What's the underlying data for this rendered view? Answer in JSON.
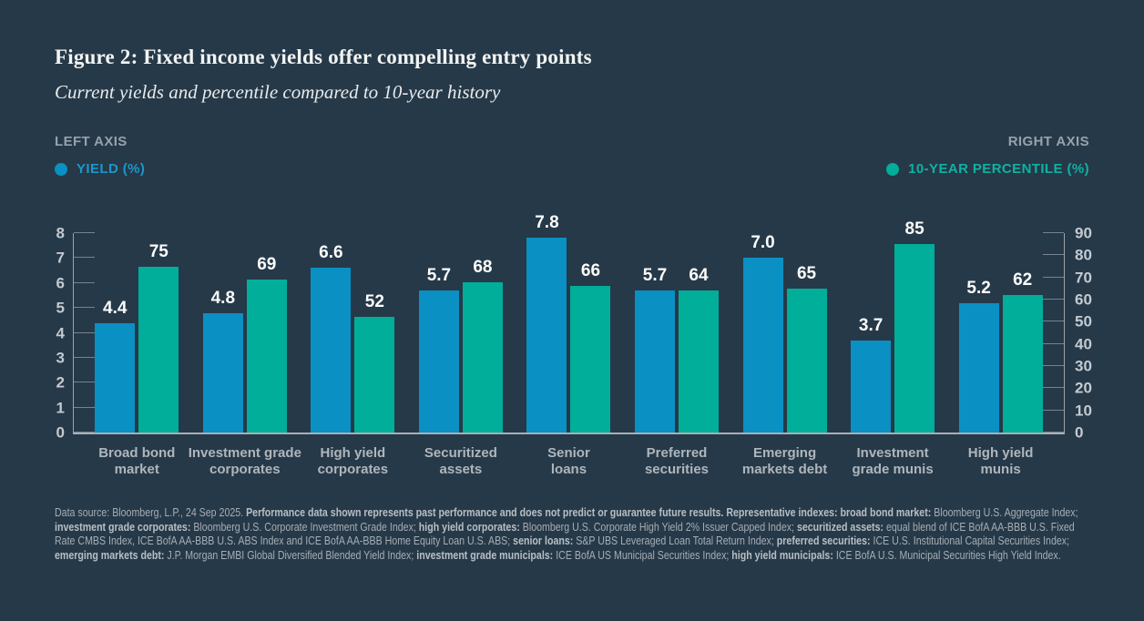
{
  "header": {
    "title": "Figure 2: Fixed income yields offer compelling entry points",
    "subtitle": "Current yields and percentile compared to 10-year history"
  },
  "legend": {
    "left_axis_label": "LEFT AXIS",
    "right_axis_label": "RIGHT AXIS",
    "yield_label": "YIELD (%)",
    "percentile_label": "10-YEAR PERCENTILE (%)",
    "yield_color": "#0B90C4",
    "percentile_color": "#00AE9A"
  },
  "colors": {
    "background": "#263948",
    "yield_bar": "#0B90C4",
    "percentile_bar": "#00AE9A",
    "axis_line": "#9AA3AB",
    "tick_label": "#C3CAD0"
  },
  "chart_data": {
    "type": "bar",
    "title": "Figure 2: Fixed income yields offer compelling entry points",
    "subtitle": "Current yields and percentile compared to 10-year history",
    "grid": false,
    "legend_position": "top",
    "categories": [
      "Broad bond market",
      "Investment grade corporates",
      "High yield corporates",
      "Securitized assets",
      "Senior loans",
      "Preferred securities",
      "Emerging markets debt",
      "Investment grade munis",
      "High yield munis"
    ],
    "category_display": [
      "Broad bond\nmarket",
      "Investment grade\ncorporates",
      "High yield\ncorporates",
      "Securitized\nassets",
      "Senior\nloans",
      "Preferred\nsecurities",
      "Emerging\nmarkets debt",
      "Investment\ngrade munis",
      "High yield\nmunis"
    ],
    "series": [
      {
        "name": "Yield (%)",
        "axis": "left",
        "color": "#0B90C4",
        "values": [
          4.4,
          4.8,
          6.6,
          5.7,
          7.8,
          5.7,
          7.0,
          3.7,
          5.2
        ],
        "labels": [
          "4.4",
          "4.8",
          "6.6",
          "5.7",
          "7.8",
          "5.7",
          "7.0",
          "3.7",
          "5.2"
        ]
      },
      {
        "name": "10-year percentile (%)",
        "axis": "right",
        "color": "#00AE9A",
        "values": [
          75,
          69,
          52,
          68,
          66,
          64,
          65,
          85,
          62
        ],
        "labels": [
          "75",
          "69",
          "52",
          "68",
          "66",
          "64",
          "65",
          "85",
          "62"
        ]
      }
    ],
    "left_axis": {
      "label": "Yield (%)",
      "min": 0,
      "max": 8,
      "ticks": [
        0,
        1,
        2,
        3,
        4,
        5,
        6,
        7,
        8
      ]
    },
    "right_axis": {
      "label": "10-year percentile (%)",
      "min": 0,
      "max": 90,
      "ticks": [
        0,
        10,
        20,
        30,
        40,
        50,
        60,
        70,
        80,
        90
      ]
    }
  },
  "footnote": {
    "segments": [
      {
        "bold": false,
        "text": "Data source: Bloomberg, L.P., 24 Sep 2025. "
      },
      {
        "bold": true,
        "text": "Performance data shown represents past performance and does not predict or guarantee future results. Representative indexes: broad bond market: "
      },
      {
        "bold": false,
        "text": "Bloomberg U.S. Aggregate Index; "
      },
      {
        "bold": true,
        "text": "investment grade corporates: "
      },
      {
        "bold": false,
        "text": "Bloomberg U.S. Corporate Investment Grade Index; "
      },
      {
        "bold": true,
        "text": "high yield corporates: "
      },
      {
        "bold": false,
        "text": "Bloomberg U.S. Corporate High Yield 2% Issuer Capped Index; "
      },
      {
        "bold": true,
        "text": "securitized assets: "
      },
      {
        "bold": false,
        "text": "equal blend of ICE BofA AA-BBB U.S. Fixed Rate CMBS Index, ICE BofA AA-BBB U.S. ABS Index and ICE BofA AA-BBB Home Equity Loan U.S. ABS; "
      },
      {
        "bold": true,
        "text": "senior loans: "
      },
      {
        "bold": false,
        "text": "S&P UBS Leveraged Loan Total Return Index; "
      },
      {
        "bold": true,
        "text": "preferred securities: "
      },
      {
        "bold": false,
        "text": "ICE U.S. Institutional Capital Securities Index; "
      },
      {
        "bold": true,
        "text": "emerging markets debt: "
      },
      {
        "bold": false,
        "text": "J.P. Morgan EMBI Global Diversified Blended Yield Index; "
      },
      {
        "bold": true,
        "text": "investment grade municipals: "
      },
      {
        "bold": false,
        "text": "ICE BofA US Municipal Securities Index; "
      },
      {
        "bold": true,
        "text": "high yield municipals: "
      },
      {
        "bold": false,
        "text": "ICE BofA U.S. Municipal Securities High Yield Index."
      }
    ]
  }
}
